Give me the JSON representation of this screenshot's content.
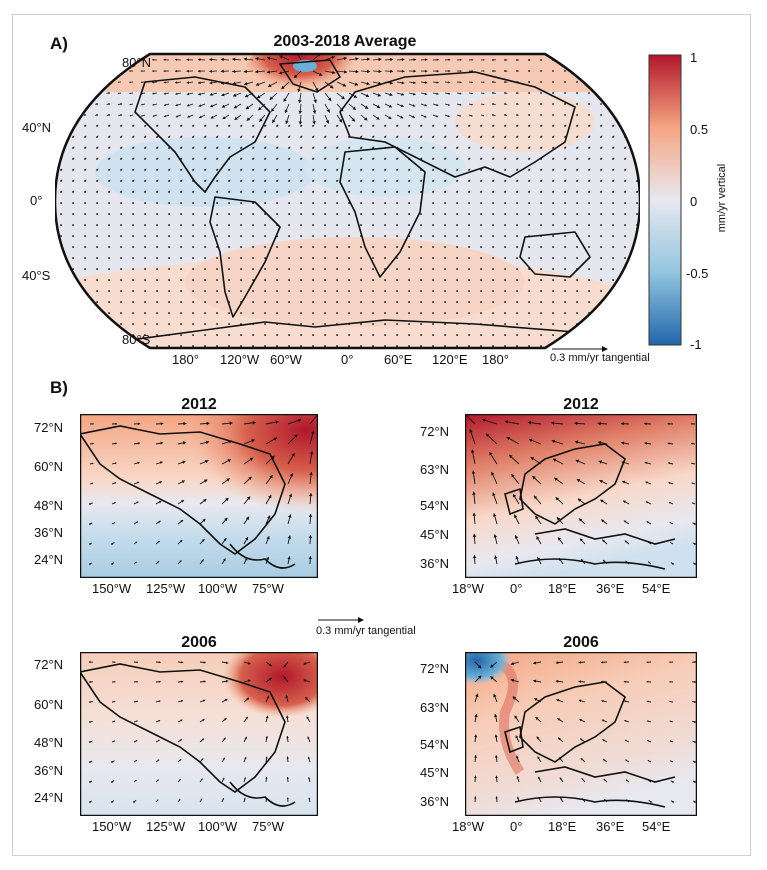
{
  "panels": {
    "a": {
      "letter": "A)",
      "title": "2003-2018 Average",
      "lat_labels": [
        "80°N",
        "40°N",
        "0°",
        "40°S",
        "80°S"
      ],
      "lon_labels": [
        "180°",
        "120°W",
        "60°W",
        "0°",
        "60°E",
        "120°E",
        "180°"
      ]
    },
    "b": {
      "letter": "B)"
    }
  },
  "colorbar": {
    "label": "mm/yr vertical",
    "ticks": [
      "1",
      "0.5",
      "0",
      "-0.5",
      "-1"
    ],
    "range": [
      -1,
      1
    ],
    "colors": [
      "#2166ac",
      "#92c5de",
      "#e8e8f0",
      "#f4a582",
      "#b2182b"
    ]
  },
  "legend": {
    "arrow_label_top": "0.3 mm/yr tangential",
    "arrow_label_mid": "0.3 mm/yr tangential"
  },
  "regional": {
    "na_lat_labels": [
      "72°N",
      "60°N",
      "48°N",
      "36°N",
      "24°N"
    ],
    "na_lon_labels": [
      "150°W",
      "125°W",
      "100°W",
      "75°W"
    ],
    "eu_lat_labels": [
      "72°N",
      "63°N",
      "54°N",
      "45°N",
      "36°N"
    ],
    "eu_lon_labels": [
      "18°W",
      "0°",
      "18°E",
      "36°E",
      "54°E"
    ],
    "na_2012_title": "2012",
    "eu_2012_title": "2012",
    "na_2006_title": "2006",
    "eu_2006_title": "2006"
  }
}
